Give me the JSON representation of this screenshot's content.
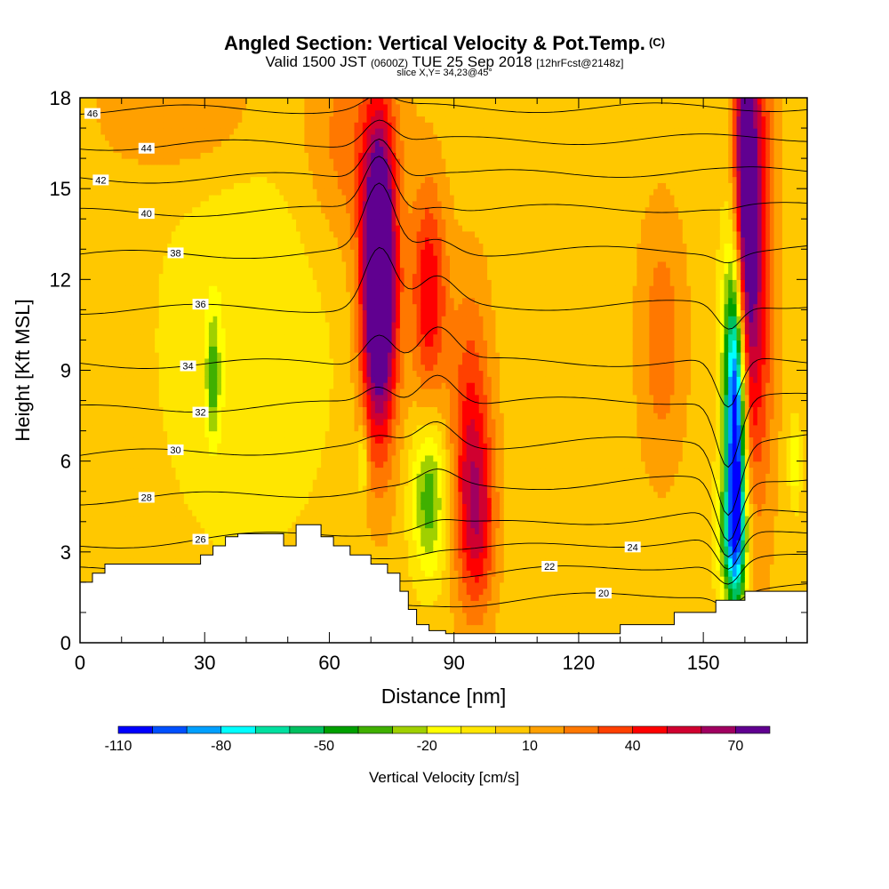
{
  "chart_data": {
    "type": "heatmap",
    "title_main": "Angled Section: Vertical Velocity & Pot.Temp.",
    "title_copyright": "(C)",
    "subtitle_valid": "Valid 1500 JST",
    "subtitle_utc": "(0600Z)",
    "subtitle_date": "TUE 25 Sep 2018",
    "subtitle_fcst": "[12hrFcst@2148z]",
    "slice_label": "slice X,Y= 34,23@45°",
    "xlabel": "Distance [nm]",
    "ylabel": "Height [Kft MSL]",
    "xlim": [
      0,
      175
    ],
    "ylim": [
      0,
      18
    ],
    "x_ticks": [
      0,
      30,
      60,
      90,
      120,
      150
    ],
    "y_ticks": [
      0,
      3,
      6,
      9,
      12,
      15,
      18
    ],
    "colorbar": {
      "label": "Vertical Velocity [cm/s]",
      "tick_labels": [
        "-110",
        "-80",
        "-50",
        "-20",
        "10",
        "40",
        "70"
      ],
      "tick_values": [
        -110,
        -80,
        -50,
        -20,
        10,
        40,
        70
      ],
      "levels": [
        -110,
        -100,
        -90,
        -80,
        -70,
        -60,
        -50,
        -40,
        -30,
        -20,
        -10,
        0,
        10,
        20,
        30,
        40,
        50,
        60,
        70,
        80
      ],
      "colors": [
        "#0000ff",
        "#0050ff",
        "#00a0ff",
        "#00ffff",
        "#00e0a0",
        "#00c060",
        "#00a000",
        "#40b000",
        "#a0d000",
        "#ffff00",
        "#ffe600",
        "#ffc800",
        "#ffa000",
        "#ff7800",
        "#ff4000",
        "#ff0000",
        "#d00030",
        "#a00060",
        "#600090"
      ]
    },
    "background_w": 5,
    "updrafts": [
      {
        "x": 72,
        "z": 12.5,
        "w": 88,
        "sx": 2.6,
        "sz": 3.2
      },
      {
        "x": 72,
        "z": 10.5,
        "w": 40,
        "sx": 3.5,
        "sz": 3.5
      },
      {
        "x": 84,
        "z": 11.5,
        "w": 45,
        "sx": 3.0,
        "sz": 2.5
      },
      {
        "x": 94,
        "z": 6.5,
        "w": 40,
        "sx": 3.5,
        "sz": 3.5
      },
      {
        "x": 96,
        "z": 4.0,
        "w": 30,
        "sx": 3.0,
        "sz": 2.0
      },
      {
        "x": 160,
        "z": 15,
        "w": 70,
        "sx": 2.0,
        "sz": 5.0
      },
      {
        "x": 163,
        "z": 13,
        "w": 45,
        "sx": 3.0,
        "sz": 6.0
      },
      {
        "x": 66,
        "z": 16.5,
        "w": 22,
        "sx": 8.0,
        "sz": 2.5
      },
      {
        "x": 25,
        "z": 17.5,
        "w": 16,
        "sx": 14.0,
        "sz": 1.5
      },
      {
        "x": 140,
        "z": 10,
        "w": 22,
        "sx": 4.0,
        "sz": 3.0
      }
    ],
    "downdrafts": [
      {
        "x": 158,
        "z": 6.5,
        "w": -95,
        "sx": 1.6,
        "sz": 3.8
      },
      {
        "x": 157,
        "z": 9.0,
        "w": -45,
        "sx": 2.0,
        "sz": 3.5
      },
      {
        "x": 157,
        "z": 3.5,
        "w": -45,
        "sx": 2.5,
        "sz": 1.5
      },
      {
        "x": 84,
        "z": 4.8,
        "w": -42,
        "sx": 3.0,
        "sz": 1.8
      },
      {
        "x": 32,
        "z": 8.8,
        "w": -32,
        "sx": 1.2,
        "sz": 1.5
      },
      {
        "x": 68,
        "z": 6.0,
        "w": -28,
        "sx": 0.8,
        "sz": 0.8
      },
      {
        "x": 172,
        "z": 6.0,
        "w": -25,
        "sx": 1.0,
        "sz": 1.0
      },
      {
        "x": 40,
        "z": 10,
        "w": -14,
        "sx": 15.0,
        "sz": 5.0
      }
    ],
    "isentropes": [
      {
        "label": "20",
        "z_left": 0.8,
        "z_right": 1.8,
        "label_x": 126
      },
      {
        "label": "22",
        "z_left": 1.6,
        "z_right": 2.8,
        "label_x": 113
      },
      {
        "label": "24",
        "z_left": 2.4,
        "z_right": 3.6,
        "label_x": 133
      },
      {
        "label": "26",
        "z_left": 3.2,
        "z_right": 4.4,
        "label_x": 29
      },
      {
        "label": "28",
        "z_left": 4.7,
        "z_right": 5.5,
        "label_x": 16
      },
      {
        "label": "30",
        "z_left": 6.2,
        "z_right": 6.8,
        "label_x": 23
      },
      {
        "label": "32",
        "z_left": 7.7,
        "z_right": 8.1,
        "label_x": 29
      },
      {
        "label": "34",
        "z_left": 9.2,
        "z_right": 9.3,
        "label_x": 26
      },
      {
        "label": "36",
        "z_left": 11.0,
        "z_right": 11.2,
        "label_x": 29
      },
      {
        "label": "38",
        "z_left": 12.8,
        "z_right": 13.0,
        "label_x": 23
      },
      {
        "label": "40",
        "z_left": 14.2,
        "z_right": 14.4,
        "label_x": 16
      },
      {
        "label": "42",
        "z_left": 15.3,
        "z_right": 15.6,
        "label_x": 5
      },
      {
        "label": "44",
        "z_left": 16.4,
        "z_right": 16.7,
        "label_x": 16
      },
      {
        "label": "46",
        "z_left": 17.6,
        "z_right": 17.7,
        "label_x": 3
      }
    ],
    "terrain": [
      [
        0,
        2.0
      ],
      [
        3,
        2.0
      ],
      [
        3,
        2.3
      ],
      [
        6,
        2.3
      ],
      [
        6,
        2.6
      ],
      [
        10,
        2.6
      ],
      [
        10,
        2.6
      ],
      [
        29,
        2.6
      ],
      [
        29,
        2.9
      ],
      [
        32,
        2.9
      ],
      [
        32,
        3.2
      ],
      [
        35,
        3.2
      ],
      [
        35,
        3.5
      ],
      [
        38,
        3.5
      ],
      [
        38,
        3.6
      ],
      [
        49,
        3.6
      ],
      [
        49,
        3.2
      ],
      [
        52,
        3.2
      ],
      [
        52,
        3.9
      ],
      [
        58,
        3.9
      ],
      [
        58,
        3.5
      ],
      [
        61,
        3.5
      ],
      [
        61,
        3.2
      ],
      [
        65,
        3.2
      ],
      [
        65,
        2.9
      ],
      [
        70,
        2.9
      ],
      [
        70,
        2.6
      ],
      [
        74,
        2.6
      ],
      [
        74,
        2.3
      ],
      [
        77,
        2.3
      ],
      [
        77,
        1.7
      ],
      [
        79,
        1.7
      ],
      [
        79,
        1.1
      ],
      [
        81,
        1.1
      ],
      [
        81,
        0.6
      ],
      [
        84,
        0.6
      ],
      [
        84,
        0.4
      ],
      [
        88,
        0.4
      ],
      [
        88,
        0.3
      ],
      [
        130,
        0.3
      ],
      [
        130,
        0.6
      ],
      [
        143,
        0.6
      ],
      [
        143,
        1.0
      ],
      [
        153,
        1.0
      ],
      [
        153,
        1.4
      ],
      [
        160,
        1.4
      ],
      [
        160,
        1.7
      ],
      [
        175,
        1.7
      ]
    ]
  }
}
